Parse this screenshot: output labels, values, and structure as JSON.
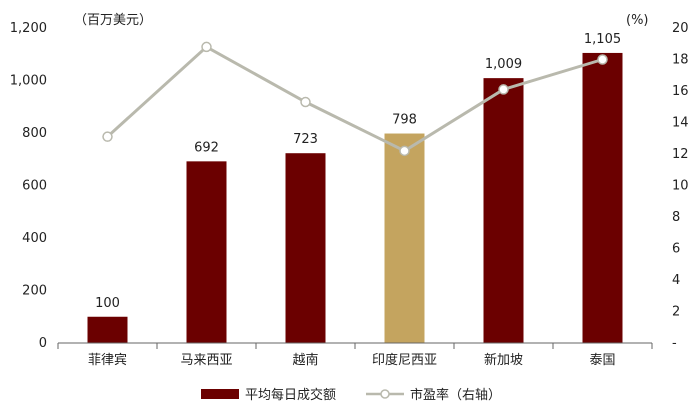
{
  "chart_data": {
    "type": "bar",
    "categories": [
      "菲律宾",
      "马来西亚",
      "越南",
      "印度尼西亚",
      "新加坡",
      "泰国"
    ],
    "series": [
      {
        "name": "平均每日成交额",
        "type": "bar",
        "axis": "left",
        "values": [
          100,
          692,
          723,
          798,
          1009,
          1105
        ],
        "labels": [
          "100",
          "692",
          "723",
          "798",
          "1,009",
          "1,105"
        ],
        "color": "#6b0000",
        "highlight_index": 3,
        "highlight_color": "#c4a45f"
      },
      {
        "name": "市盈率（右轴）",
        "type": "line",
        "axis": "right",
        "values": [
          13.1,
          18.8,
          15.3,
          12.2,
          16.1,
          18.0
        ],
        "color": "#b9b9ad"
      }
    ],
    "y_left": {
      "unit_label": "（百万美元）",
      "ylim": [
        0,
        1200
      ],
      "ticks": [
        0,
        200,
        400,
        600,
        800,
        1000,
        1200
      ],
      "tick_labels": [
        "0",
        "200",
        "400",
        "600",
        "800",
        "1,000",
        "1,200"
      ]
    },
    "y_right": {
      "unit_label": "(%)",
      "ylim": [
        0,
        20
      ],
      "ticks": [
        0,
        2,
        4,
        6,
        8,
        10,
        12,
        14,
        16,
        18,
        20
      ],
      "tick_labels": [
        "-",
        "2",
        "4",
        "6",
        "8",
        "10",
        "12",
        "14",
        "16",
        "18",
        "20"
      ]
    },
    "grid": false,
    "legend_position": "bottom"
  }
}
